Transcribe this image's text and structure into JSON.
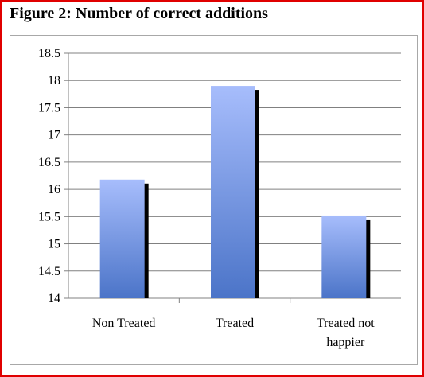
{
  "figure": {
    "title": "Figure 2: Number of correct additions"
  },
  "colors": {
    "frame_border": "#e00000",
    "bar_top": "#a7bdfc",
    "bar_bottom": "#4b74c8",
    "bar_shadow": "#000000",
    "gridline": "#808080"
  },
  "chart_data": {
    "type": "bar",
    "title": "",
    "xlabel": "",
    "ylabel": "",
    "categories": [
      "Non Treated",
      "Treated",
      "Treated not happier"
    ],
    "category_lines": [
      [
        "Non Treated"
      ],
      [
        "Treated"
      ],
      [
        "Treated not",
        "happier"
      ]
    ],
    "values": [
      16.18,
      17.9,
      15.52
    ],
    "ylim": [
      14,
      18.5
    ],
    "yticks": [
      14,
      14.5,
      15,
      15.5,
      16,
      16.5,
      17,
      17.5,
      18,
      18.5
    ],
    "grid": true,
    "legend": "none"
  }
}
